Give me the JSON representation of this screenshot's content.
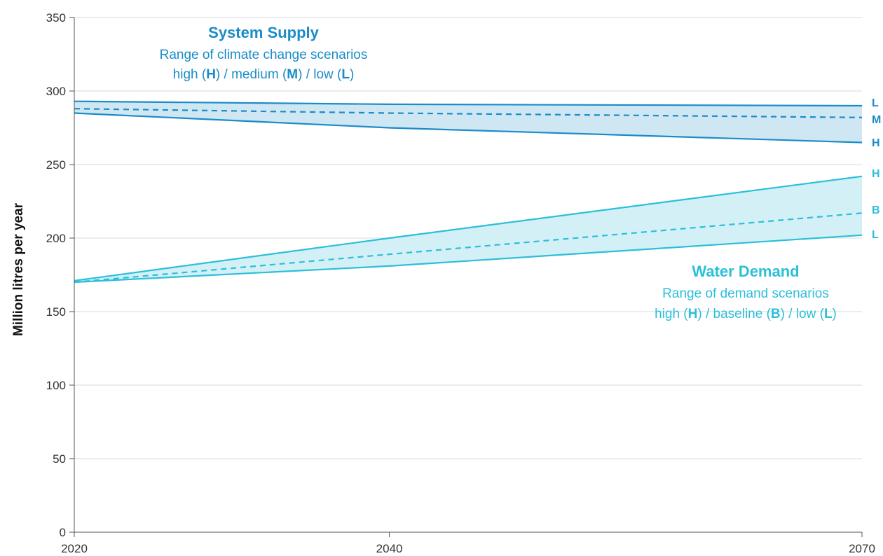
{
  "chart_data": {
    "type": "area",
    "x": [
      2020,
      2040,
      2070
    ],
    "xticks": [
      "2020",
      "2040",
      "2070"
    ],
    "xlim": [
      2020,
      2070
    ],
    "ylabel": "Million litres per year",
    "ylim": [
      0,
      350
    ],
    "yticks": [
      "0",
      "50",
      "100",
      "150",
      "200",
      "250",
      "300",
      "350"
    ],
    "grid": "horizontal",
    "groups": [
      {
        "id": "supply",
        "title": "System Supply",
        "subtitle": "Range of climate change scenarios",
        "legend_parts": [
          "high (",
          "H",
          ") / medium (",
          "M",
          ") / low (",
          "L",
          ")"
        ],
        "color": "#1a8cc8",
        "fill": "#cfe6f3",
        "series": [
          {
            "name": "L",
            "style": "solid",
            "values": [
              293,
              291,
              290
            ]
          },
          {
            "name": "M",
            "style": "dashed",
            "values": [
              288,
              285,
              282
            ]
          },
          {
            "name": "H",
            "style": "solid",
            "values": [
              285,
              275,
              265
            ]
          }
        ]
      },
      {
        "id": "demand",
        "title": "Water Demand",
        "subtitle": "Range of demand scenarios",
        "legend_parts": [
          "high (",
          "H",
          ") / baseline (",
          "B",
          ") / low (",
          "L",
          ")"
        ],
        "color": "#2bbfda",
        "fill": "#d3f0f6",
        "series": [
          {
            "name": "H",
            "style": "solid",
            "values": [
              171,
              200,
              242
            ]
          },
          {
            "name": "B",
            "style": "dashed",
            "values": [
              170,
              189,
              217
            ]
          },
          {
            "name": "L",
            "style": "solid",
            "values": [
              170,
              181,
              202
            ]
          }
        ]
      }
    ]
  }
}
